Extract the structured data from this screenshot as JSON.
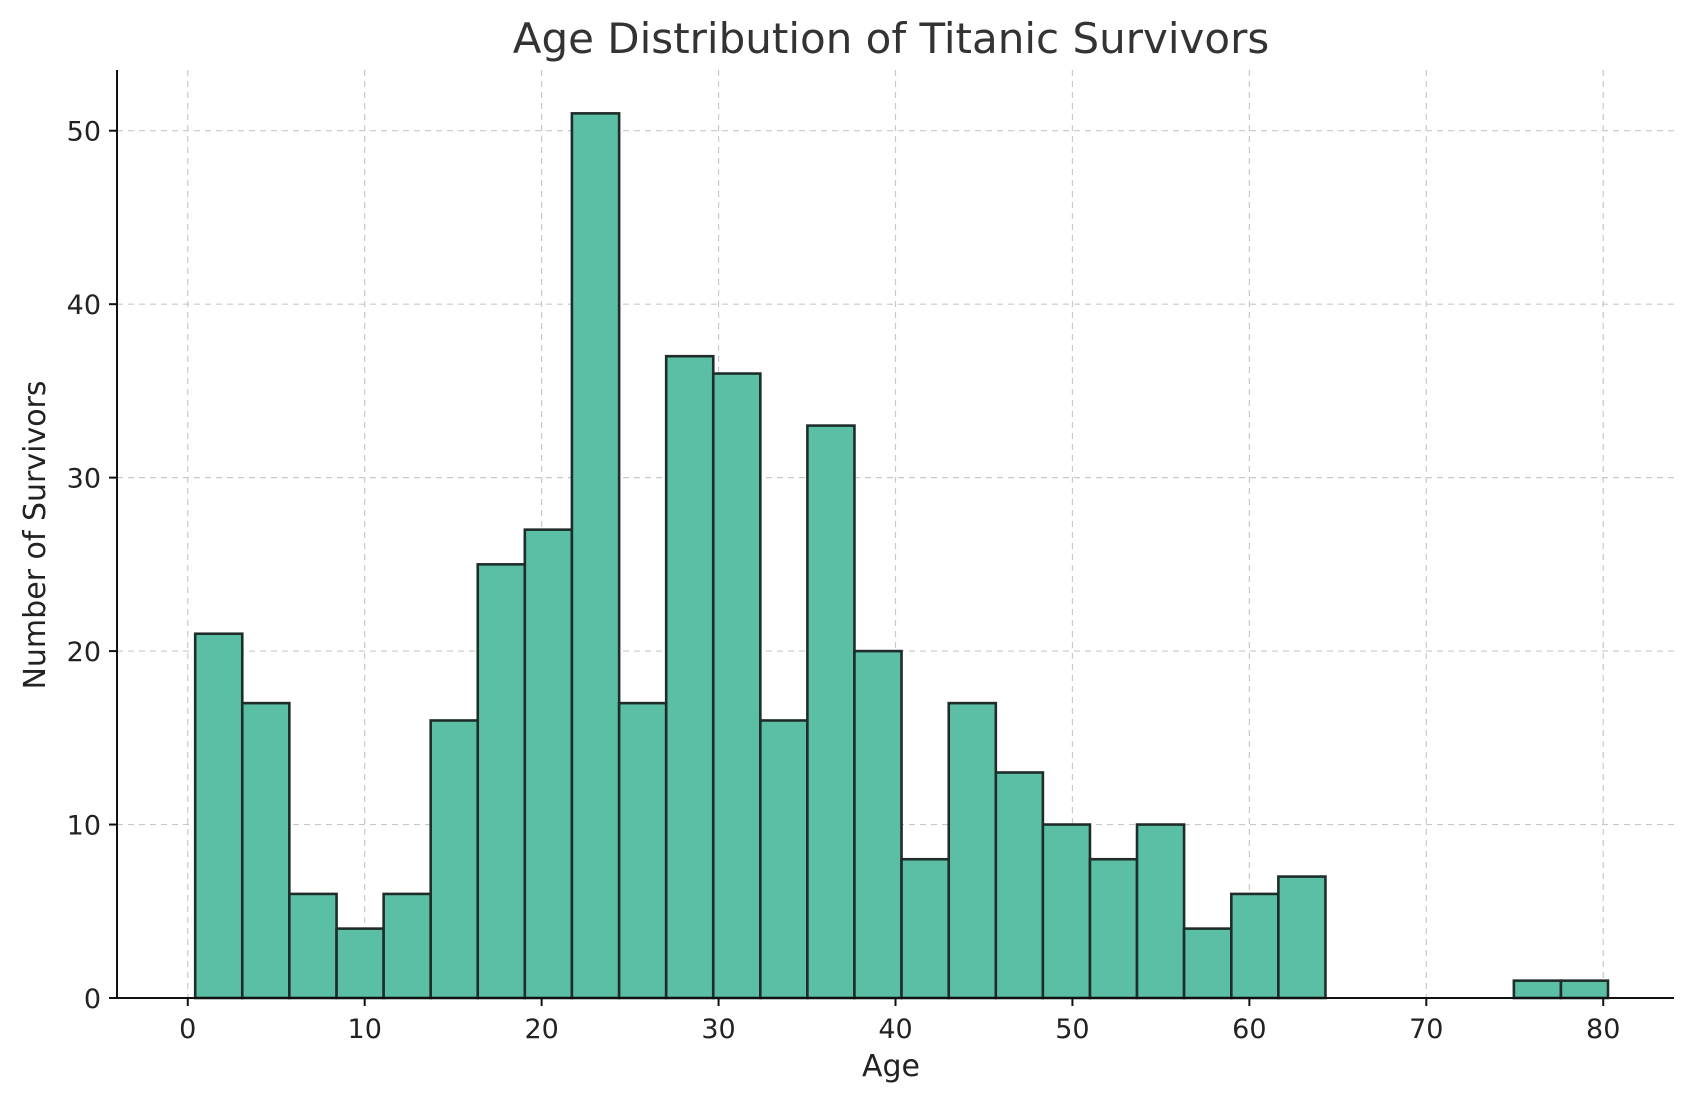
{
  "chart_data": {
    "type": "bar",
    "title": "Age Distribution of Titanic Survivors",
    "xlabel": "Age",
    "ylabel": "Number of Survivors",
    "xlim": [
      -4,
      84
    ],
    "ylim": [
      0,
      53.5
    ],
    "x_ticks": [
      0,
      10,
      20,
      30,
      40,
      50,
      60,
      70,
      80
    ],
    "y_ticks": [
      0,
      10,
      20,
      30,
      40,
      50
    ],
    "grid": true,
    "bar_color": "#5bbfa5",
    "edge_color": "#1f2d2a",
    "bins": [
      {
        "x0": 0.42,
        "x1": 3.08,
        "count": 21
      },
      {
        "x0": 3.08,
        "x1": 5.74,
        "count": 17
      },
      {
        "x0": 5.74,
        "x1": 8.41,
        "count": 6
      },
      {
        "x0": 8.41,
        "x1": 11.07,
        "count": 4
      },
      {
        "x0": 11.07,
        "x1": 13.73,
        "count": 6
      },
      {
        "x0": 13.73,
        "x1": 16.39,
        "count": 16
      },
      {
        "x0": 16.39,
        "x1": 19.05,
        "count": 25
      },
      {
        "x0": 19.05,
        "x1": 21.71,
        "count": 27
      },
      {
        "x0": 21.71,
        "x1": 24.38,
        "count": 51
      },
      {
        "x0": 24.38,
        "x1": 27.04,
        "count": 17
      },
      {
        "x0": 27.04,
        "x1": 29.7,
        "count": 37
      },
      {
        "x0": 29.7,
        "x1": 32.36,
        "count": 36
      },
      {
        "x0": 32.36,
        "x1": 35.02,
        "count": 16
      },
      {
        "x0": 35.02,
        "x1": 37.68,
        "count": 33
      },
      {
        "x0": 37.68,
        "x1": 40.34,
        "count": 20
      },
      {
        "x0": 40.34,
        "x1": 43.01,
        "count": 8
      },
      {
        "x0": 43.01,
        "x1": 45.67,
        "count": 17
      },
      {
        "x0": 45.67,
        "x1": 48.33,
        "count": 13
      },
      {
        "x0": 48.33,
        "x1": 50.99,
        "count": 10
      },
      {
        "x0": 50.99,
        "x1": 53.65,
        "count": 8
      },
      {
        "x0": 53.65,
        "x1": 56.31,
        "count": 10
      },
      {
        "x0": 56.31,
        "x1": 58.98,
        "count": 4
      },
      {
        "x0": 58.98,
        "x1": 61.64,
        "count": 6
      },
      {
        "x0": 61.64,
        "x1": 64.3,
        "count": 7
      },
      {
        "x0": 64.3,
        "x1": 66.96,
        "count": 0
      },
      {
        "x0": 66.96,
        "x1": 69.62,
        "count": 0
      },
      {
        "x0": 69.62,
        "x1": 72.28,
        "count": 0
      },
      {
        "x0": 72.28,
        "x1": 74.95,
        "count": 0
      },
      {
        "x0": 74.95,
        "x1": 77.61,
        "count": 1
      },
      {
        "x0": 77.61,
        "x1": 80.27,
        "count": 1
      }
    ]
  }
}
